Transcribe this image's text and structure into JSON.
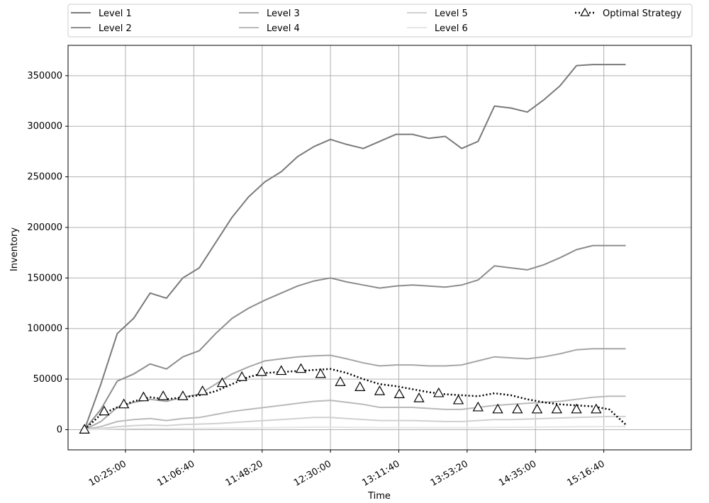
{
  "chart_data": {
    "type": "line",
    "title": "",
    "xlabel": "Time",
    "ylabel": "Inventory",
    "xlim": [
      "09:50:00",
      "16:10:00"
    ],
    "ylim": [
      -20000,
      380000
    ],
    "x_ticks": [
      "10:25:00",
      "11:06:40",
      "11:48:20",
      "12:30:00",
      "13:11:40",
      "13:53:20",
      "14:35:00",
      "15:16:40"
    ],
    "y_ticks": [
      0,
      50000,
      100000,
      150000,
      200000,
      250000,
      300000,
      350000
    ],
    "grid": true,
    "legend_position": "top, above plot, 4 columns",
    "colors": {
      "level1": "#7a7a7a",
      "level2": "#8c8c8c",
      "level3": "#a6a6a6",
      "level4": "#bababa",
      "level5": "#d0d0d0",
      "level6": "#e6e6e6",
      "optimal": "#000000"
    },
    "x": [
      "10:00:00",
      "10:10:00",
      "10:20:00",
      "10:30:00",
      "10:40:00",
      "10:50:00",
      "11:00:00",
      "11:10:00",
      "11:20:00",
      "11:30:00",
      "11:40:00",
      "11:50:00",
      "12:00:00",
      "12:10:00",
      "12:20:00",
      "12:30:00",
      "12:40:00",
      "12:50:00",
      "13:00:00",
      "13:10:00",
      "13:20:00",
      "13:30:00",
      "13:40:00",
      "13:50:00",
      "14:00:00",
      "14:10:00",
      "14:20:00",
      "14:30:00",
      "14:40:00",
      "14:50:00",
      "15:00:00",
      "15:10:00",
      "15:20:00",
      "15:30:00"
    ],
    "series": [
      {
        "name": "Level 1",
        "values": [
          0,
          45000,
          95000,
          110000,
          135000,
          130000,
          150000,
          160000,
          185000,
          210000,
          230000,
          245000,
          255000,
          270000,
          280000,
          287000,
          282000,
          278000,
          285000,
          292000,
          292000,
          288000,
          290000,
          278000,
          285000,
          320000,
          318000,
          314000,
          326000,
          340000,
          360000,
          361000,
          361000,
          361000
        ]
      },
      {
        "name": "Level 2",
        "values": [
          0,
          20000,
          48000,
          55000,
          65000,
          60000,
          72000,
          78000,
          95000,
          110000,
          120000,
          128000,
          135000,
          142000,
          147000,
          150000,
          146000,
          143000,
          140000,
          142000,
          143000,
          142000,
          141000,
          143000,
          148000,
          162000,
          160000,
          158000,
          163000,
          170000,
          178000,
          182000,
          182000,
          182000
        ]
      },
      {
        "name": "Level 3",
        "values": [
          0,
          8000,
          22000,
          27000,
          30000,
          28000,
          32000,
          35000,
          45000,
          55000,
          62000,
          68000,
          70000,
          72000,
          73000,
          73500,
          70000,
          66000,
          63000,
          64000,
          64000,
          63000,
          63000,
          64000,
          68000,
          72000,
          71000,
          70000,
          72000,
          75000,
          79000,
          80000,
          80000,
          80000
        ]
      },
      {
        "name": "Level 4",
        "values": [
          0,
          3000,
          8000,
          10000,
          11000,
          9000,
          11000,
          12000,
          15000,
          18000,
          20000,
          22000,
          24000,
          26000,
          28000,
          29000,
          27000,
          25000,
          22000,
          22000,
          22000,
          21000,
          20000,
          20000,
          22000,
          24000,
          25000,
          26000,
          27000,
          28000,
          30000,
          32000,
          33000,
          33000
        ]
      },
      {
        "name": "Level 5",
        "values": [
          0,
          1000,
          3000,
          4000,
          4500,
          4000,
          5000,
          5500,
          6000,
          7000,
          8000,
          9000,
          10000,
          11000,
          12000,
          12000,
          11000,
          10000,
          9000,
          9000,
          9000,
          8500,
          8000,
          8000,
          9000,
          10000,
          10000,
          10500,
          11000,
          11500,
          12000,
          12500,
          13000,
          13000
        ]
      },
      {
        "name": "Level 6",
        "values": [
          0,
          300,
          800,
          1000,
          1100,
          1000,
          1200,
          1300,
          1400,
          1500,
          1600,
          1800,
          2000,
          2200,
          2400,
          2500,
          2300,
          2100,
          2000,
          2000,
          2000,
          1900,
          1900,
          1900,
          2000,
          2200,
          2300,
          2400,
          2500,
          2700,
          2900,
          3000,
          3100,
          3100
        ]
      },
      {
        "name": "Optimal Strategy",
        "values": [
          0,
          15000,
          22000,
          28000,
          32000,
          30000,
          32000,
          34000,
          38000,
          45000,
          52000,
          56000,
          57000,
          58000,
          59000,
          60000,
          56000,
          50000,
          45000,
          43000,
          40000,
          37000,
          35000,
          34000,
          33000,
          36000,
          34000,
          30000,
          27000,
          25000,
          24000,
          23000,
          20000,
          5000
        ]
      }
    ],
    "markers": {
      "series": "Optimal Strategy",
      "shape": "triangle",
      "x": [
        "10:00:00",
        "10:12:00",
        "10:24:00",
        "10:36:00",
        "10:48:00",
        "11:00:00",
        "11:12:00",
        "11:24:00",
        "11:36:00",
        "11:48:00",
        "12:00:00",
        "12:12:00",
        "12:24:00",
        "12:36:00",
        "12:48:00",
        "13:00:00",
        "13:12:00",
        "13:24:00",
        "13:36:00",
        "13:48:00",
        "14:00:00",
        "14:12:00",
        "14:24:00",
        "14:36:00",
        "14:48:00",
        "15:00:00",
        "15:12:00"
      ],
      "values": [
        0,
        18000,
        25000,
        32000,
        33000,
        33000,
        38000,
        46000,
        52000,
        57000,
        58000,
        60000,
        55000,
        47000,
        42000,
        38000,
        35000,
        31000,
        36000,
        29000,
        22000,
        20000,
        20000,
        20000,
        20000,
        20000,
        20000
      ]
    }
  },
  "legend": {
    "items": [
      {
        "label": "Level 1",
        "color": "#7a7a7a",
        "style": "solid"
      },
      {
        "label": "Level 2",
        "color": "#8c8c8c",
        "style": "solid"
      },
      {
        "label": "Level 3",
        "color": "#a6a6a6",
        "style": "solid"
      },
      {
        "label": "Level 4",
        "color": "#bababa",
        "style": "solid"
      },
      {
        "label": "Level 5",
        "color": "#d0d0d0",
        "style": "solid"
      },
      {
        "label": "Level 6",
        "color": "#e6e6e6",
        "style": "solid"
      },
      {
        "label": "Optimal Strategy",
        "color": "#000000",
        "style": "dotted-triangle"
      }
    ]
  }
}
